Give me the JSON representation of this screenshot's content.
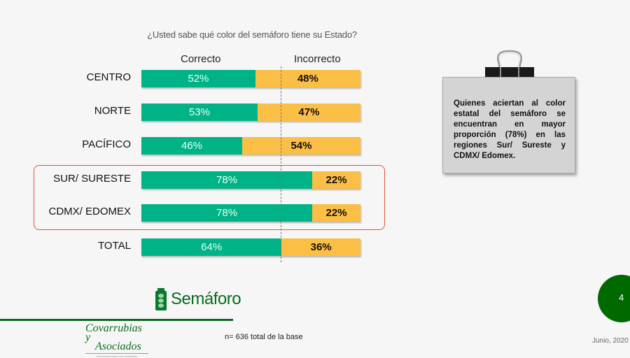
{
  "slide": {
    "question": "¿Usted sabe qué color del semáforo tiene su Estado?",
    "column_headers": {
      "correct": "Correcto",
      "incorrect": "Incorrecto"
    },
    "rows": [
      {
        "label": "CENTRO",
        "correct": "52%",
        "incorrect": "48%"
      },
      {
        "label": "NORTE",
        "correct": "53%",
        "incorrect": "47%"
      },
      {
        "label": "PACÍFICO",
        "correct": "46%",
        "incorrect": "54%"
      },
      {
        "label": "SUR/ SURESTE",
        "correct": "78%",
        "incorrect": "22%"
      },
      {
        "label": "CDMX/ EDOMEX",
        "correct": "78%",
        "incorrect": "22%"
      },
      {
        "label": "TOTAL",
        "correct": "64%",
        "incorrect": "36%"
      }
    ],
    "note": "Quienes aciertan al color estatal del semáforo se encuentran en mayor proporción (78%) en las regiones Sur/ Sureste y CDMX/ Edomex.",
    "section_label": "Semáforo",
    "logo_text_1": "Covarrubias y",
    "logo_text_2": "Asociados",
    "logo_tagline": "Información clara con resultados",
    "base_note": "n= 636 total de la base",
    "page_number": "4",
    "date": "Junio, 2020",
    "colors": {
      "correct": "#00b386",
      "incorrect": "#fcbf45",
      "highlight": "#e2533a",
      "brand_green": "#0a6b1f",
      "page_circle": "#006a00"
    }
  },
  "chart_data": {
    "type": "bar",
    "orientation": "horizontal",
    "stacked": true,
    "title": "¿Usted sabe qué color del semáforo tiene su Estado?",
    "categories": [
      "CENTRO",
      "NORTE",
      "PACÍFICO",
      "SUR/ SURESTE",
      "CDMX/ EDOMEX",
      "TOTAL"
    ],
    "series": [
      {
        "name": "Correcto",
        "color": "#00b386",
        "values": [
          52,
          53,
          46,
          78,
          78,
          64
        ]
      },
      {
        "name": "Incorrecto",
        "color": "#fcbf45",
        "values": [
          48,
          47,
          54,
          22,
          22,
          36
        ]
      }
    ],
    "xlabel": "",
    "ylabel": "",
    "xlim": [
      0,
      100
    ],
    "reference_line": {
      "x": 64,
      "style": "dashed"
    },
    "highlighted_categories": [
      "SUR/ SURESTE",
      "CDMX/ EDOMEX"
    ],
    "legend_position": "top",
    "grid": false,
    "data_labels": true
  }
}
